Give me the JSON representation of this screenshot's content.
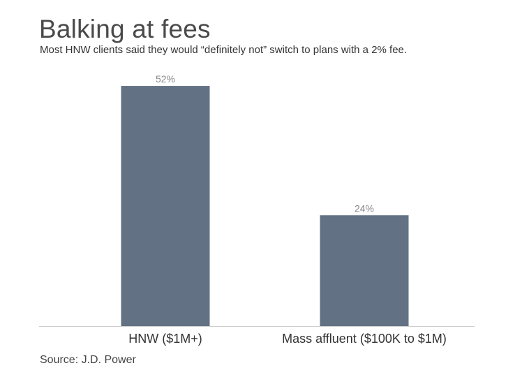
{
  "title": "Balking at fees",
  "subtitle": "Most HNW clients said they would “definitely not” switch to plans with a 2% fee.",
  "source": "Source: J.D. Power",
  "colors": {
    "bar": "#627183",
    "axis": "#cccccc",
    "value_label": "#888888",
    "category_label": "#333333"
  },
  "chart_data": {
    "type": "bar",
    "categories": [
      "HNW ($1M+)",
      "Mass affluent ($100K to $1M)"
    ],
    "values": [
      52,
      24
    ],
    "value_labels": [
      "52%",
      "24%"
    ],
    "ylim": [
      0,
      57
    ],
    "grid": false,
    "legend": "none"
  }
}
